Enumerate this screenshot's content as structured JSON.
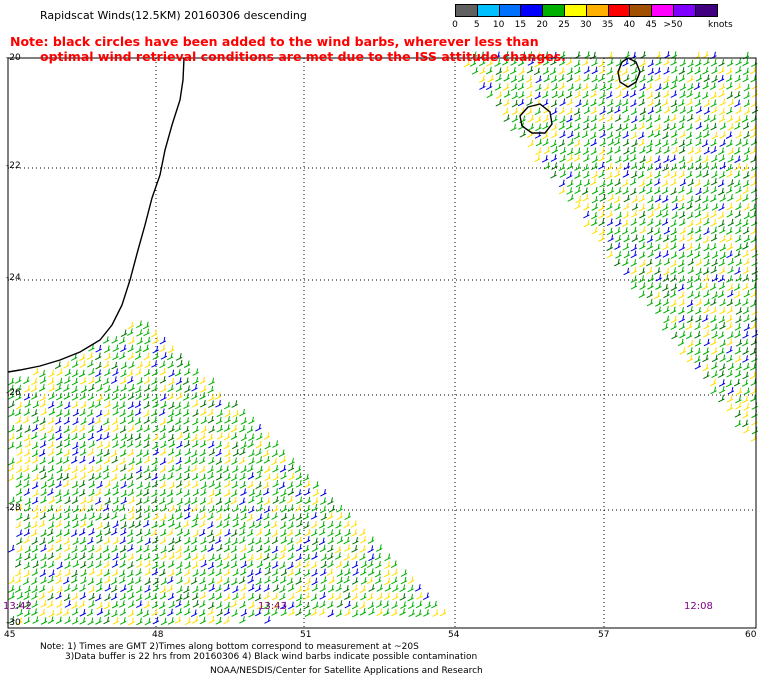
{
  "title": "Rapidscat Winds(12.5KM) 20160306 descending",
  "note": {
    "line1": "Note: black circles have been added to the wind barbs, wherever less than",
    "line2": "optimal wind retrieval conditions are met due to the ISS attitude changes."
  },
  "color_scale": {
    "labels": [
      "0",
      "5",
      "10",
      "15",
      "20",
      "25",
      "30",
      "35",
      "40",
      "45",
      ">50"
    ],
    "units": "knots",
    "colors": [
      "#606060",
      "#00c0ff",
      "#0070ff",
      "#0000ff",
      "#00b000",
      "#ffff00",
      "#ffb000",
      "#ff0000",
      "#a05000",
      "#ff00ff",
      "#8000ff",
      "#400080"
    ]
  },
  "latitude_labels": [
    "-20",
    "-22",
    "-24",
    "-26",
    "-28",
    "-30"
  ],
  "longitude_labels": [
    "45",
    "48",
    "51",
    "54",
    "57",
    "60"
  ],
  "pass_times": [
    "13:42",
    "13:43",
    "12:08"
  ],
  "footer": {
    "line1": "Note: 1) Times are GMT 2)Times along bottom correspond to measurement at ~20S",
    "line2": "3)Data buffer is 22 hrs from 20160306 4) Black wind barbs indicate possible contamination",
    "line3": "NOAA/NESDIS/Center for Satellite Applications and Research"
  }
}
